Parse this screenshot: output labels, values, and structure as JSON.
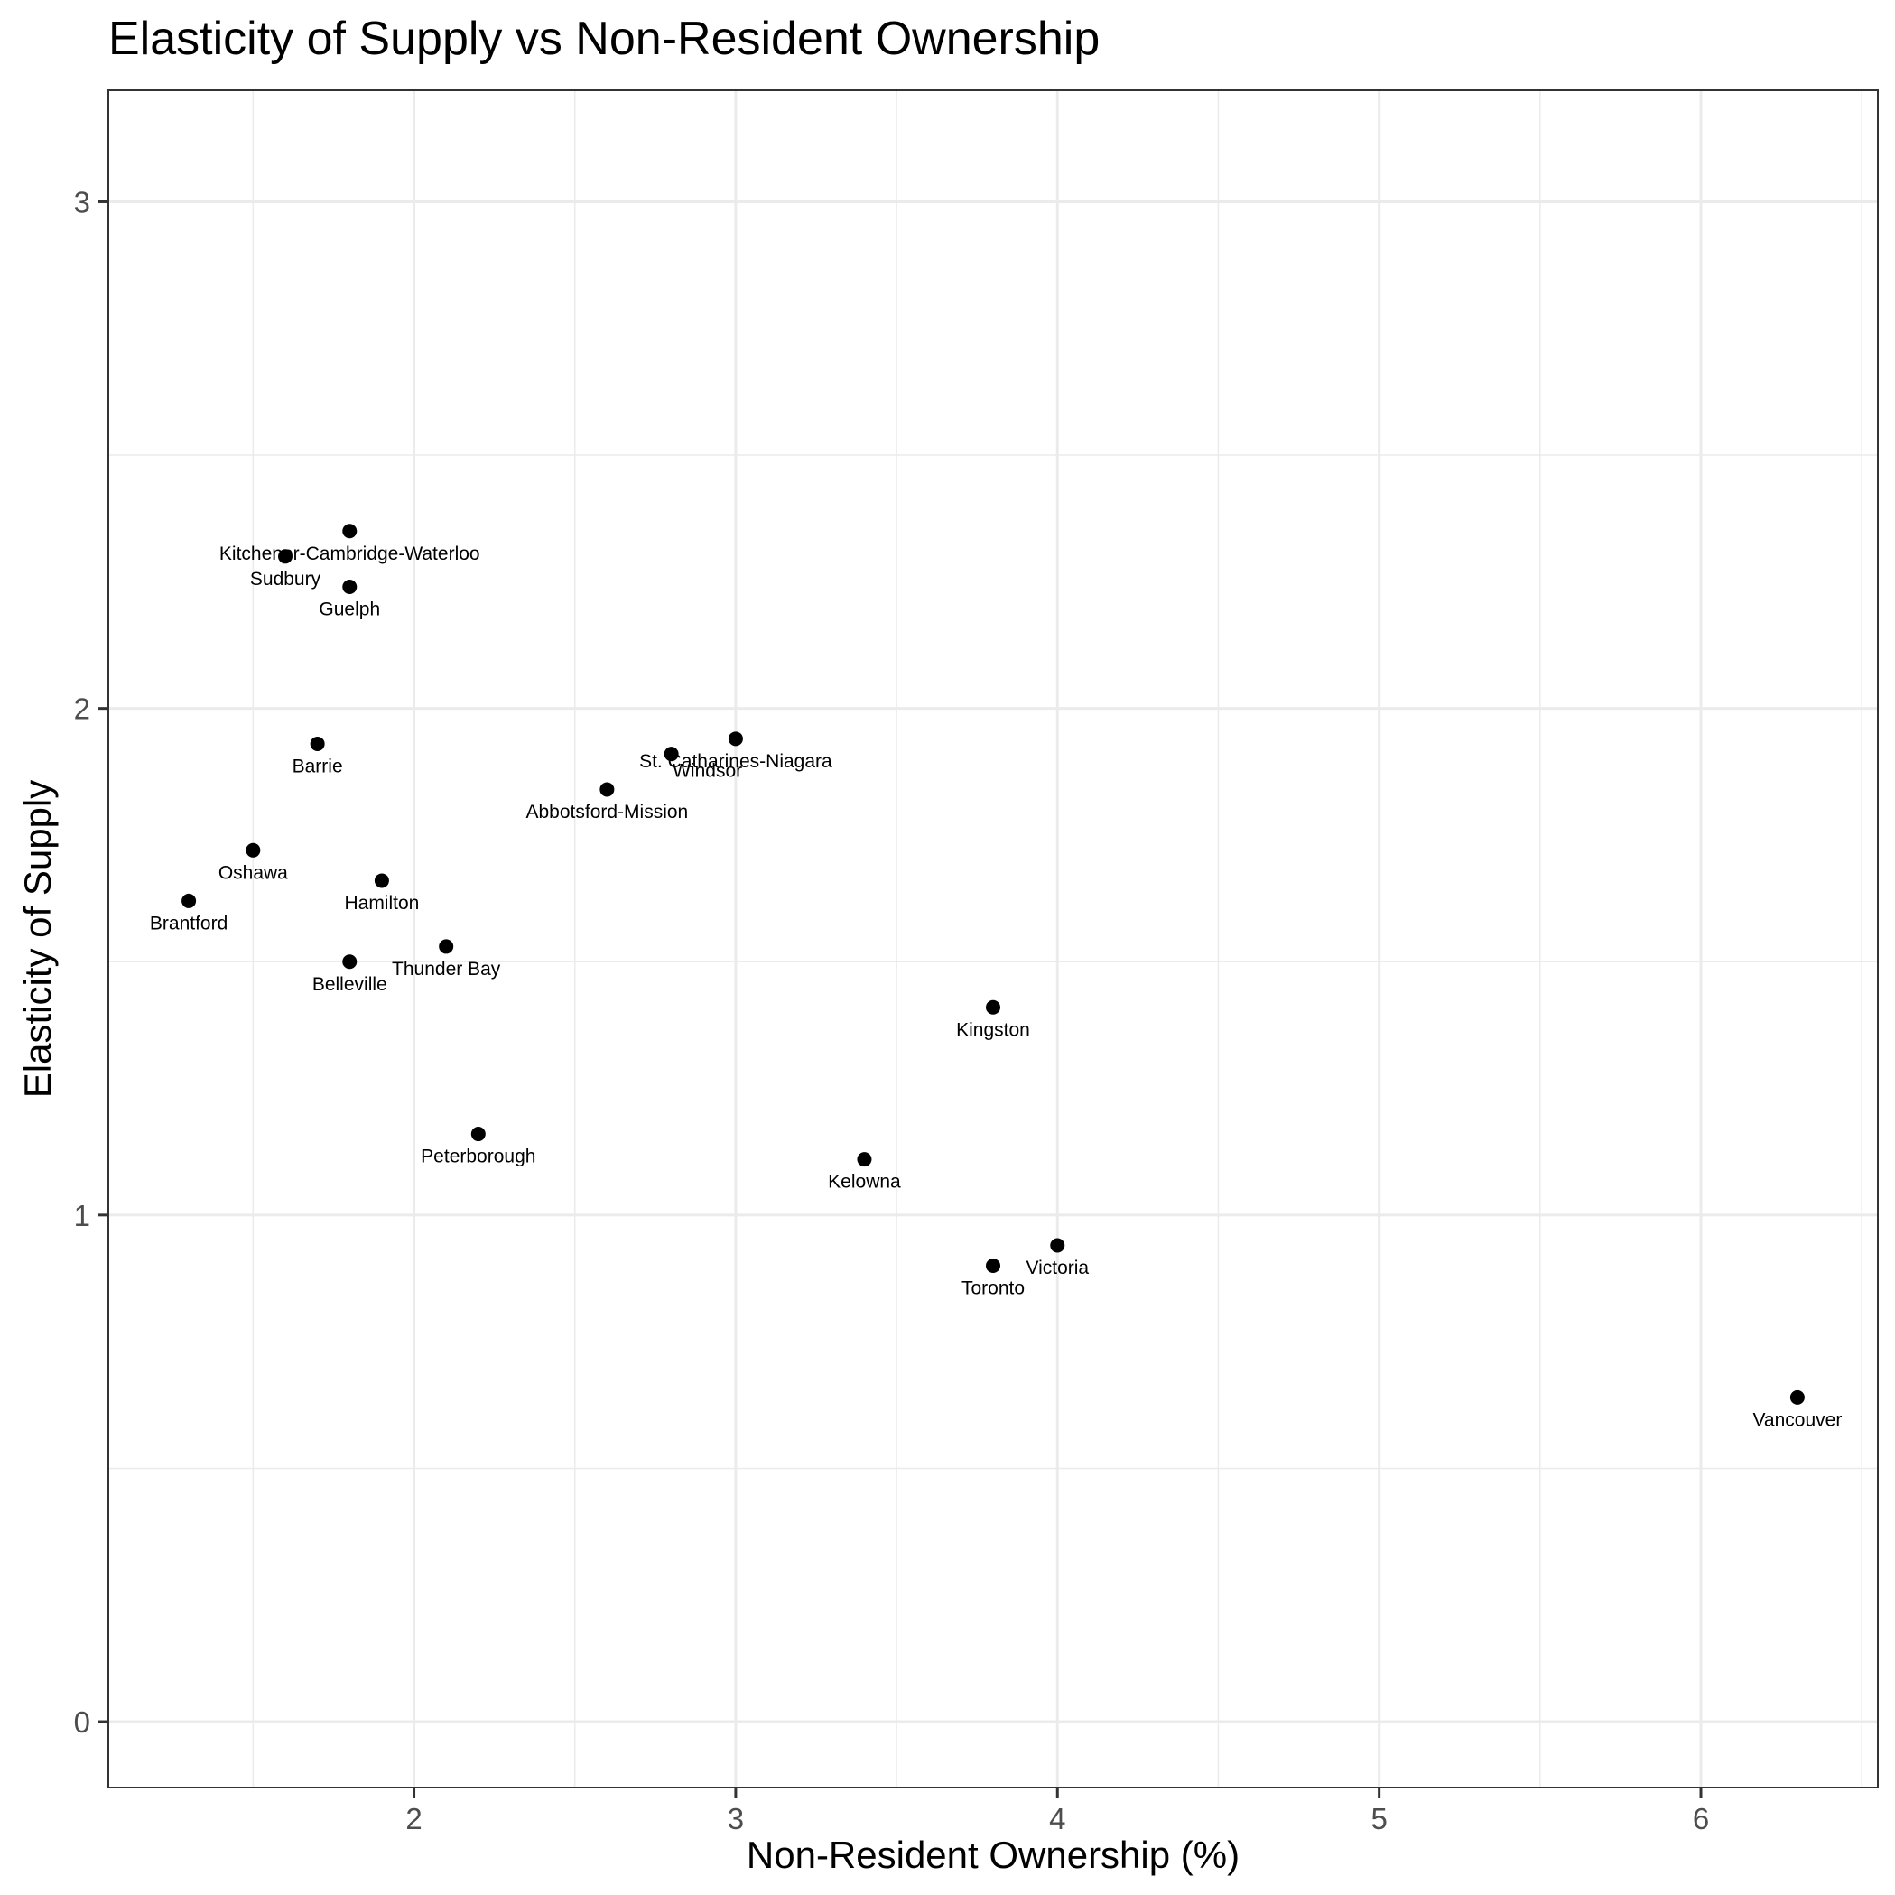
{
  "chart_data": {
    "type": "scatter",
    "title": "Elasticity of Supply vs Non-Resident Ownership",
    "xlabel": "Non-Resident Ownership (%)",
    "ylabel": "Elasticity of Supply",
    "xlim": [
      1.05,
      6.55
    ],
    "ylim": [
      -0.13,
      3.22
    ],
    "x_ticks": [
      2,
      3,
      4,
      5,
      6
    ],
    "y_ticks": [
      0,
      1,
      2,
      3
    ],
    "grid": true,
    "theme": "bw",
    "point_color": "#000000",
    "points": [
      {
        "label": "Kitchener-Cambridge-Waterloo",
        "x": 1.8,
        "y": 2.35
      },
      {
        "label": "Sudbury",
        "x": 1.6,
        "y": 2.3
      },
      {
        "label": "Guelph",
        "x": 1.8,
        "y": 2.24
      },
      {
        "label": "Barrie",
        "x": 1.7,
        "y": 1.93
      },
      {
        "label": "St. Catharines-Niagara",
        "x": 3.0,
        "y": 1.94
      },
      {
        "label": "Windsor",
        "x": 2.8,
        "y": 1.91
      },
      {
        "label": "Abbotsford-Mission",
        "x": 2.6,
        "y": 1.84
      },
      {
        "label": "Oshawa",
        "x": 1.5,
        "y": 1.72
      },
      {
        "label": "Hamilton",
        "x": 1.9,
        "y": 1.66
      },
      {
        "label": "Brantford",
        "x": 1.3,
        "y": 1.62
      },
      {
        "label": "Thunder Bay",
        "x": 2.1,
        "y": 1.53
      },
      {
        "label": "Belleville",
        "x": 1.8,
        "y": 1.5
      },
      {
        "label": "Kingston",
        "x": 3.8,
        "y": 1.41
      },
      {
        "label": "Peterborough",
        "x": 2.2,
        "y": 1.16
      },
      {
        "label": "Kelowna",
        "x": 3.4,
        "y": 1.11
      },
      {
        "label": "Victoria",
        "x": 4.0,
        "y": 0.94
      },
      {
        "label": "Toronto",
        "x": 3.8,
        "y": 0.9
      },
      {
        "label": "Vancouver",
        "x": 6.3,
        "y": 0.64
      }
    ]
  }
}
